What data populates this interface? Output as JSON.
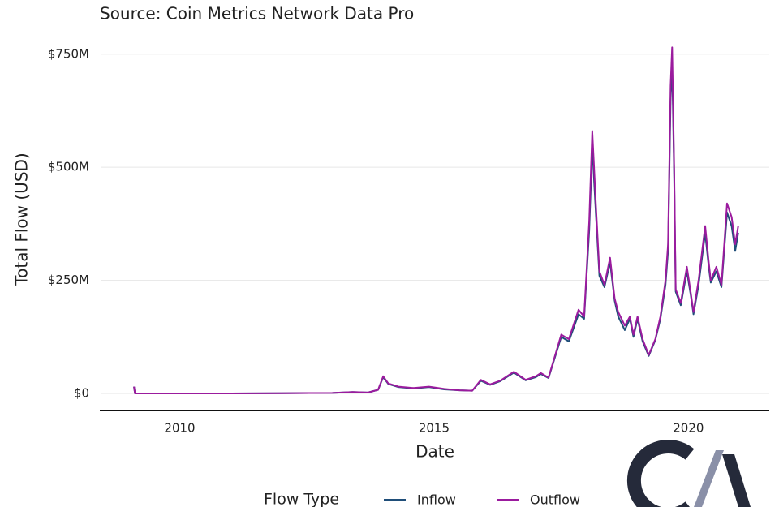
{
  "chart_data": {
    "type": "line",
    "subtitle": "Source: Coin Metrics Network Data Pro",
    "x_label": "Date",
    "y_label": "Total Flow (USD)",
    "legend_title": "Flow Type",
    "x": [
      2009.1,
      2009.12,
      2010,
      2011,
      2012,
      2013,
      2013.4,
      2013.7,
      2013.9,
      2014.0,
      2014.1,
      2014.3,
      2014.6,
      2014.9,
      2015.2,
      2015.5,
      2015.75,
      2015.92,
      2016.1,
      2016.3,
      2016.57,
      2016.8,
      2017.0,
      2017.1,
      2017.25,
      2017.5,
      2017.65,
      2017.84,
      2017.95,
      2018.05,
      2018.11,
      2018.18,
      2018.25,
      2018.35,
      2018.46,
      2018.55,
      2018.62,
      2018.75,
      2018.85,
      2018.92,
      2019.0,
      2019.1,
      2019.22,
      2019.35,
      2019.45,
      2019.55,
      2019.6,
      2019.65,
      2019.68,
      2019.72,
      2019.75,
      2019.85,
      2019.97,
      2020.05,
      2020.1,
      2020.2,
      2020.33,
      2020.4,
      2020.44,
      2020.55,
      2020.65,
      2020.76,
      2020.85,
      2020.92,
      2020.98
    ],
    "series": [
      {
        "name": "Inflow",
        "color": "#1f4e79",
        "values": [
          15000000.0,
          0,
          0,
          0,
          500000.0,
          1000000.0,
          3000000.0,
          2000000.0,
          8000000.0,
          36000000.0,
          21000000.0,
          14000000.0,
          11000000.0,
          14000000.0,
          9000000.0,
          7000000.0,
          6000000.0,
          28000000.0,
          19000000.0,
          27000000.0,
          46000000.0,
          29000000.0,
          36000000.0,
          43000000.0,
          34000000.0,
          125000000.0,
          115000000.0,
          175000000.0,
          165000000.0,
          360000000.0,
          545000000.0,
          400000000.0,
          260000000.0,
          235000000.0,
          290000000.0,
          205000000.0,
          170000000.0,
          140000000.0,
          165000000.0,
          125000000.0,
          165000000.0,
          115000000.0,
          83000000.0,
          118000000.0,
          165000000.0,
          240000000.0,
          315000000.0,
          650000000.0,
          730000000.0,
          480000000.0,
          225000000.0,
          195000000.0,
          270000000.0,
          215000000.0,
          175000000.0,
          240000000.0,
          355000000.0,
          280000000.0,
          245000000.0,
          270000000.0,
          235000000.0,
          400000000.0,
          370000000.0,
          315000000.0,
          355000000.0
        ]
      },
      {
        "name": "Outflow",
        "color": "#9b1b9e",
        "values": [
          15000000.0,
          0,
          0,
          0,
          500000.0,
          1000000.0,
          3000000.0,
          2000000.0,
          8000000.0,
          38000000.0,
          22000000.0,
          15000000.0,
          12000000.0,
          15000000.0,
          10000000.0,
          7000000.0,
          6000000.0,
          30000000.0,
          20000000.0,
          28000000.0,
          48000000.0,
          30000000.0,
          38000000.0,
          45000000.0,
          35000000.0,
          130000000.0,
          120000000.0,
          185000000.0,
          170000000.0,
          380000000.0,
          580000000.0,
          420000000.0,
          270000000.0,
          240000000.0,
          300000000.0,
          210000000.0,
          180000000.0,
          150000000.0,
          170000000.0,
          130000000.0,
          170000000.0,
          120000000.0,
          85000000.0,
          120000000.0,
          170000000.0,
          250000000.0,
          330000000.0,
          680000000.0,
          765000000.0,
          500000000.0,
          230000000.0,
          200000000.0,
          280000000.0,
          220000000.0,
          180000000.0,
          250000000.0,
          370000000.0,
          290000000.0,
          250000000.0,
          280000000.0,
          240000000.0,
          420000000.0,
          390000000.0,
          330000000.0,
          370000000.0
        ]
      }
    ],
    "xlim": [
      2008.46,
      2021.59
    ],
    "xticks": [
      2010,
      2015,
      2020
    ],
    "ylim": [
      -37700000.0,
      798000000.0
    ],
    "yticks": [
      {
        "value": 0,
        "label": "$0"
      },
      {
        "value": 250000000.0,
        "label": "$250M"
      },
      {
        "value": 500000000.0,
        "label": "$500M"
      },
      {
        "value": 750000000.0,
        "label": "$750M"
      }
    ],
    "grid": true
  }
}
